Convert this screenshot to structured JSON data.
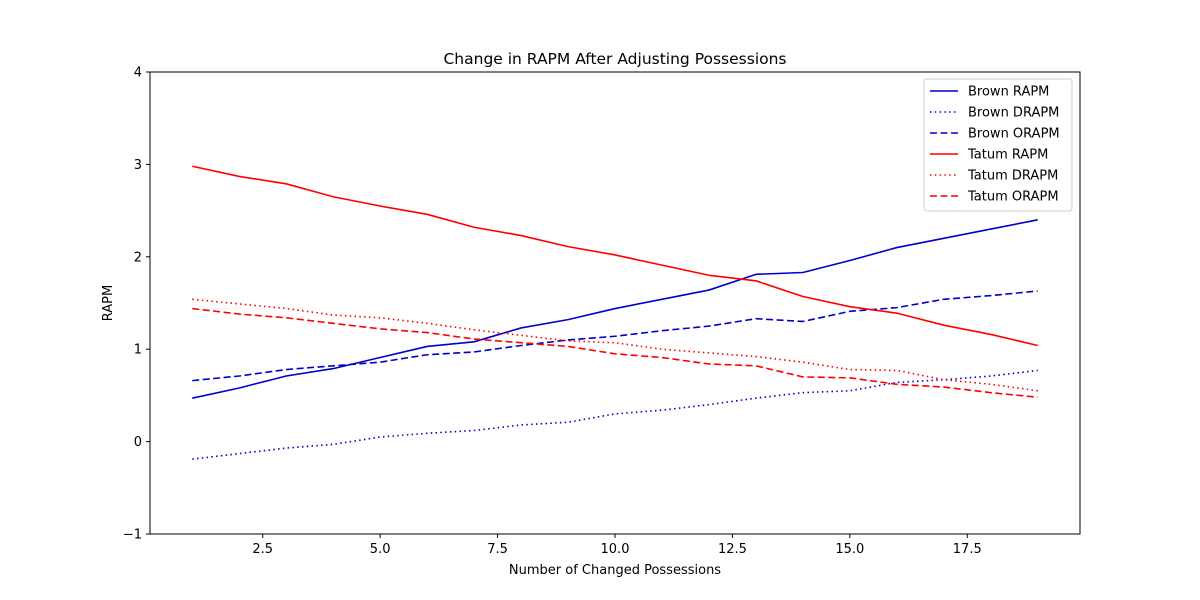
{
  "chart_data": {
    "type": "line",
    "title": "Change in RAPM After Adjusting Possessions",
    "xlabel": "Number of Changed Possessions",
    "ylabel": "RAPM",
    "xlim": [
      0.1,
      19.9
    ],
    "ylim": [
      -1,
      4
    ],
    "xticks": [
      2.5,
      5.0,
      7.5,
      10.0,
      12.5,
      15.0,
      17.5
    ],
    "xtick_labels": [
      "2.5",
      "5.0",
      "7.5",
      "10.0",
      "12.5",
      "15.0",
      "17.5"
    ],
    "yticks": [
      -1,
      0,
      1,
      2,
      3,
      4
    ],
    "ytick_labels": [
      "−1",
      "0",
      "1",
      "2",
      "3",
      "4"
    ],
    "grid": false,
    "legend_position": "top-right",
    "x": [
      1,
      2,
      3,
      4,
      5,
      6,
      7,
      8,
      9,
      10,
      11,
      12,
      13,
      14,
      15,
      16,
      17,
      18,
      19
    ],
    "series": [
      {
        "name": "Brown RAPM",
        "color": "#0000cc",
        "style": "solid",
        "values": [
          0.47,
          0.58,
          0.71,
          0.79,
          0.91,
          1.03,
          1.08,
          1.23,
          1.32,
          1.44,
          1.54,
          1.64,
          1.81,
          1.83,
          1.96,
          2.1,
          2.2,
          2.3,
          2.4
        ]
      },
      {
        "name": "Brown DRAPM",
        "color": "#0000cc",
        "style": "dotted",
        "values": [
          -0.19,
          -0.13,
          -0.07,
          -0.03,
          0.05,
          0.09,
          0.12,
          0.18,
          0.21,
          0.3,
          0.34,
          0.4,
          0.47,
          0.53,
          0.55,
          0.64,
          0.67,
          0.71,
          0.77
        ]
      },
      {
        "name": "Brown ORAPM",
        "color": "#0000cc",
        "style": "dashed",
        "values": [
          0.66,
          0.71,
          0.78,
          0.82,
          0.86,
          0.94,
          0.97,
          1.04,
          1.1,
          1.14,
          1.2,
          1.25,
          1.33,
          1.3,
          1.41,
          1.45,
          1.54,
          1.58,
          1.63
        ]
      },
      {
        "name": "Tatum RAPM",
        "color": "#ff0000",
        "style": "solid",
        "values": [
          2.98,
          2.87,
          2.79,
          2.65,
          2.55,
          2.46,
          2.32,
          2.23,
          2.11,
          2.02,
          1.91,
          1.8,
          1.74,
          1.57,
          1.46,
          1.39,
          1.26,
          1.16,
          1.04
        ]
      },
      {
        "name": "Tatum DRAPM",
        "color": "#ff0000",
        "style": "dotted",
        "values": [
          1.54,
          1.49,
          1.44,
          1.37,
          1.34,
          1.28,
          1.21,
          1.15,
          1.09,
          1.07,
          1.0,
          0.96,
          0.92,
          0.86,
          0.78,
          0.77,
          0.67,
          0.62,
          0.55
        ]
      },
      {
        "name": "Tatum ORAPM",
        "color": "#ff0000",
        "style": "dashed",
        "values": [
          1.44,
          1.38,
          1.34,
          1.28,
          1.22,
          1.18,
          1.11,
          1.07,
          1.03,
          0.95,
          0.91,
          0.84,
          0.82,
          0.7,
          0.69,
          0.62,
          0.59,
          0.53,
          0.48
        ]
      }
    ]
  }
}
